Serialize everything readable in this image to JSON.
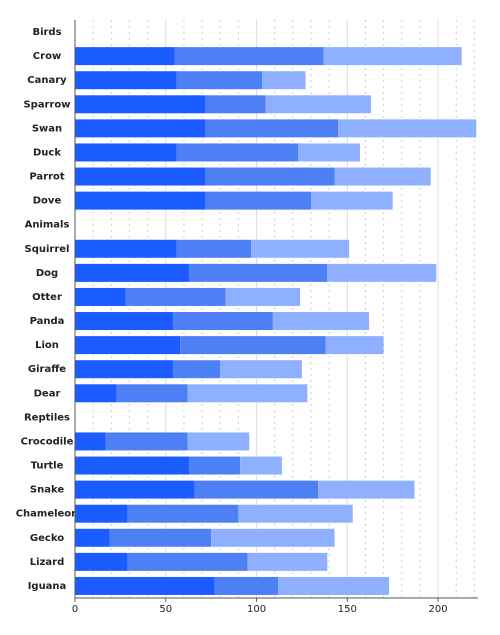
{
  "chart_data": {
    "type": "stacked-bar-horizontal",
    "categories": [
      "Birds",
      "Crow",
      "Canary",
      "Sparrow",
      "Swan",
      "Duck",
      "Parrot",
      "Dove",
      "Animals",
      "Squirrel",
      "Dog",
      "Otter",
      "Panda",
      "Lion",
      "Giraffe",
      "Dear",
      "Reptiles",
      "Crocodile",
      "Turtle",
      "Snake",
      "Chameleon",
      "Gecko",
      "Lizard",
      "Iguana"
    ],
    "series": [
      {
        "color": "#1a5cff",
        "values": [
          null,
          55,
          56,
          72,
          72,
          56,
          72,
          72,
          null,
          56,
          63,
          28,
          54,
          58,
          54,
          23,
          null,
          17,
          63,
          66,
          29,
          19,
          29,
          77
        ]
      },
      {
        "color": "#4d80f5",
        "values": [
          null,
          82,
          47,
          33,
          73,
          67,
          71,
          58,
          null,
          41,
          76,
          55,
          55,
          80,
          26,
          39,
          null,
          45,
          28,
          68,
          61,
          56,
          66,
          35
        ]
      },
      {
        "color": "#8fb0ff",
        "values": [
          null,
          76,
          24,
          58,
          76,
          34,
          53,
          45,
          null,
          54,
          60,
          41,
          53,
          32,
          45,
          66,
          null,
          34,
          23,
          53,
          63,
          68,
          44,
          61
        ]
      }
    ],
    "xlim": [
      0,
      222
    ],
    "xticks": [
      0,
      50,
      100,
      150,
      200
    ],
    "xminorticks": [
      10,
      20,
      30,
      40,
      60,
      70,
      80,
      90,
      110,
      120,
      130,
      140,
      160,
      170,
      180,
      190,
      210,
      220
    ],
    "grid": true
  }
}
